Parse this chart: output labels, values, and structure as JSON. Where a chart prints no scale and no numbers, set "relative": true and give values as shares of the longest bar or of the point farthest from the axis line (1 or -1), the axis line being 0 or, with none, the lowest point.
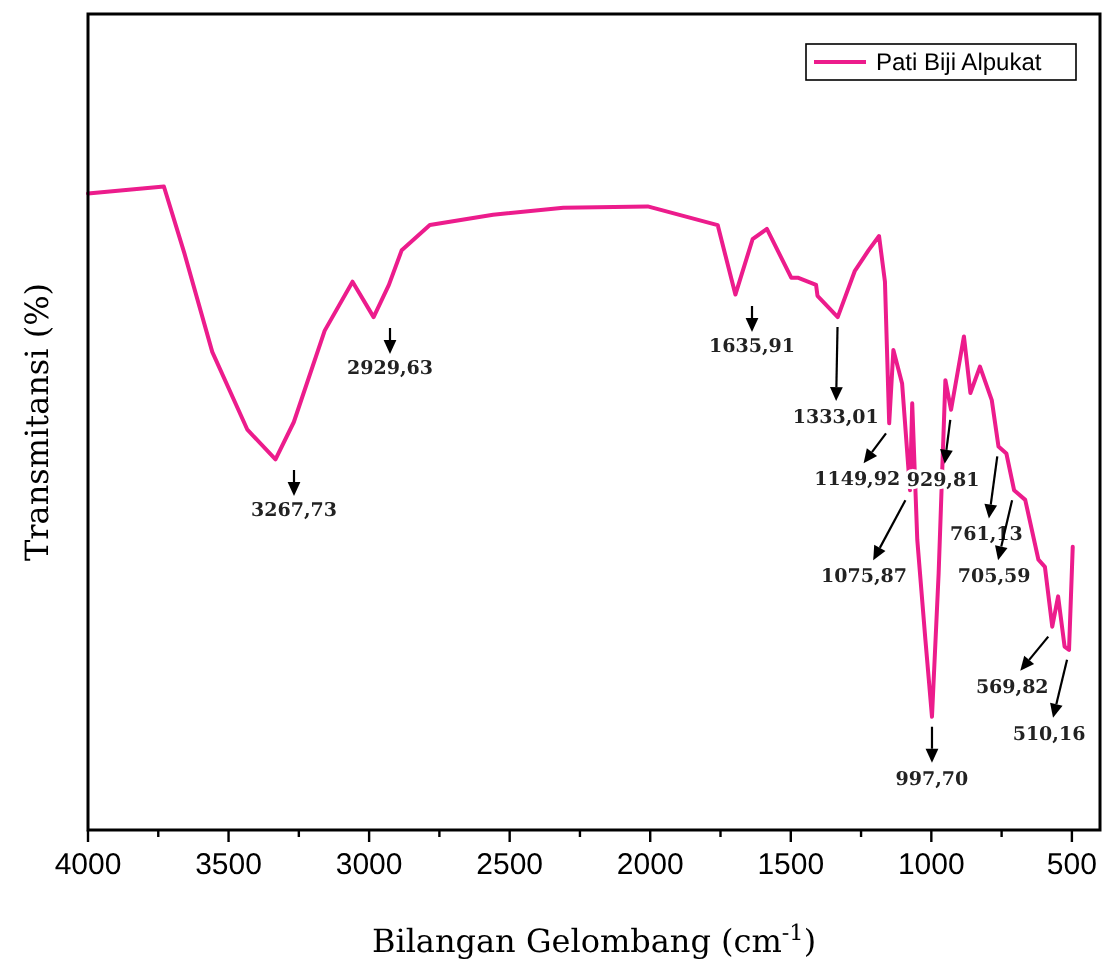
{
  "chart_data": {
    "type": "line",
    "xlabel": "Bilangan Gelombang (cm$^{-1}$)",
    "ylabel": "Transmitansi (%)",
    "relative": true,
    "legend": "top right",
    "xlim": [
      4000,
      400
    ],
    "xticks": [
      4000,
      {
        "value": 3750,
        "label": null
      },
      3500,
      {
        "value": 3250,
        "label": null
      },
      3000,
      {
        "value": 2750,
        "label": null
      },
      2500,
      {
        "value": 2250,
        "label": null
      },
      2000,
      {
        "value": 1750,
        "label": null
      },
      1500,
      {
        "value": 1250,
        "label": null
      },
      1000,
      {
        "value": 750,
        "label": null
      },
      500
    ],
    "series": [
      {
        "name": "Pati Biji Alpukat",
        "color": "#ec1c8c",
        "x": [
          4000,
          3730,
          3657,
          3558,
          3433,
          3333,
          3267.73,
          3158,
          3059,
          2984,
          2929.63,
          2884,
          2784,
          2559,
          2309,
          2009,
          1760,
          1697,
          1635.91,
          1585,
          1498,
          1473,
          1410,
          1405,
          1333.01,
          1272,
          1223,
          1186,
          1165,
          1149.92,
          1135,
          1104,
          1075.87,
          1068,
          1050,
          1021,
          997.7,
          974,
          950,
          929.81,
          884,
          861,
          827,
          785,
          761.13,
          733,
          705.59,
          666,
          619,
          596,
          569.82,
          549,
          526,
          510.16,
          497
        ],
        "values": [
          0.989,
          1,
          0.896,
          0.743,
          0.622,
          0.576,
          0.634,
          0.776,
          0.852,
          0.797,
          0.847,
          0.901,
          0.94,
          0.956,
          0.967,
          0.969,
          0.94,
          0.832,
          0.918,
          0.934,
          0.858,
          0.858,
          0.847,
          0.83,
          0.797,
          0.869,
          0.901,
          0.923,
          0.852,
          0.632,
          0.746,
          0.694,
          0.528,
          0.663,
          0.451,
          0.295,
          0.176,
          0.399,
          0.699,
          0.653,
          0.767,
          0.679,
          0.72,
          0.668,
          0.596,
          0.585,
          0.528,
          0.513,
          0.42,
          0.409,
          0.316,
          0.363,
          0.285,
          0.28,
          0.44
        ]
      }
    ],
    "annotations": [
      "3267,73",
      "2929,63",
      "1635,91",
      {
        "text": "1333,01",
        "x": 1333.01,
        "y": 0.797
      },
      {
        "text": "1149,92",
        "x": 1149.92,
        "y": 0.632
      },
      {
        "text": "1075,87",
        "x": 1075.87,
        "y": 0.528
      },
      {
        "text": "997,70",
        "x": 997.7,
        "y": 0.176
      },
      {
        "text": "929,81",
        "x": 929.81,
        "y": 0.653
      },
      {
        "text": "761,13",
        "x": 761.13,
        "y": 0.596
      },
      {
        "text": "705,59",
        "x": 705.59,
        "y": 0.528
      },
      {
        "text": "569,82",
        "x": 569.82,
        "y": 0.316
      },
      {
        "text": "510,16",
        "x": 510.16,
        "y": 0.28
      }
    ]
  }
}
